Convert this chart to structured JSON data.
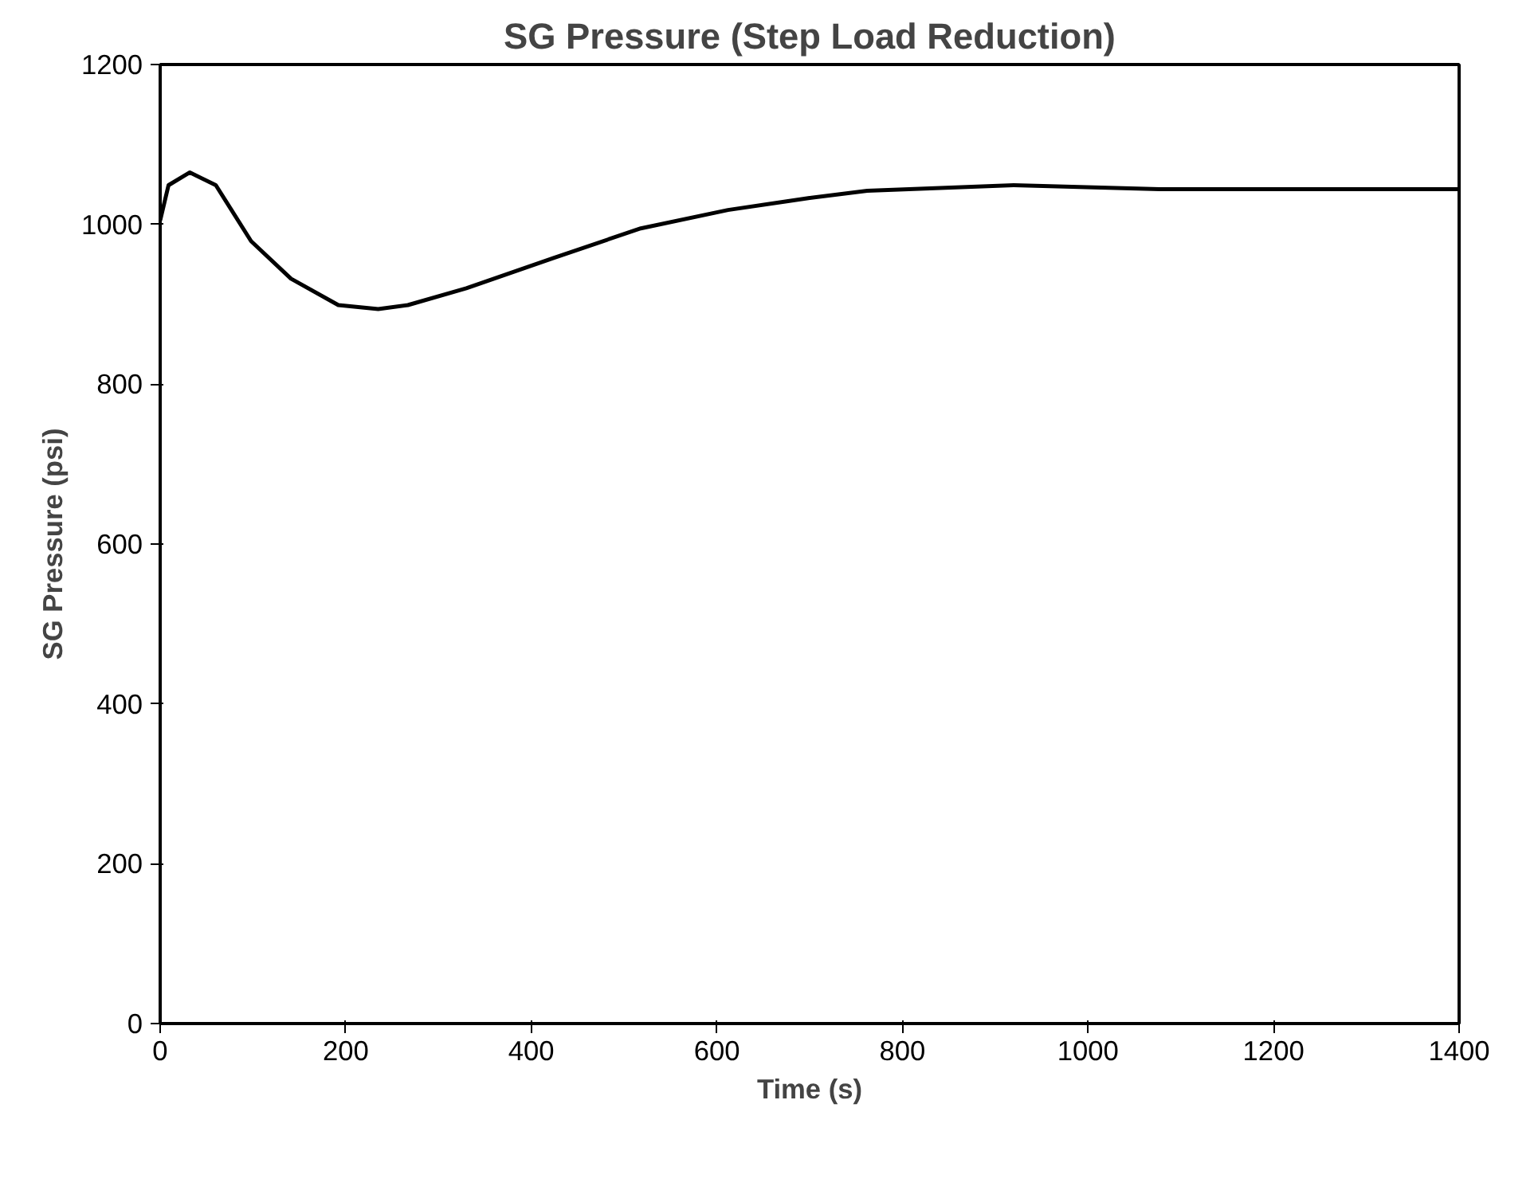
{
  "chart_data": {
    "type": "line",
    "title": "SG Pressure (Step Load Reduction)",
    "xlabel": "Time (s)",
    "ylabel": "SG Pressure (psi)",
    "x": [
      0,
      9,
      32,
      60,
      98,
      141,
      192,
      235,
      267,
      330,
      424,
      518,
      612,
      700,
      762,
      920,
      1077,
      1400
    ],
    "series": [
      {
        "color": "#000000",
        "values": [
          1005,
          1049,
          1065,
          1049,
          979,
          932,
          899,
          894,
          899,
          920,
          958,
          995,
          1018,
          1033,
          1042,
          1049,
          1044,
          1044
        ]
      }
    ],
    "xlim": [
      0,
      1400
    ],
    "ylim": [
      0,
      1200
    ],
    "xticks": [
      0,
      200,
      400,
      600,
      800,
      1000,
      1200,
      1400
    ],
    "yticks": [
      0,
      200,
      400,
      600,
      800,
      1000,
      1200
    ],
    "grid": false,
    "marker": "none",
    "line_style": "solid"
  }
}
